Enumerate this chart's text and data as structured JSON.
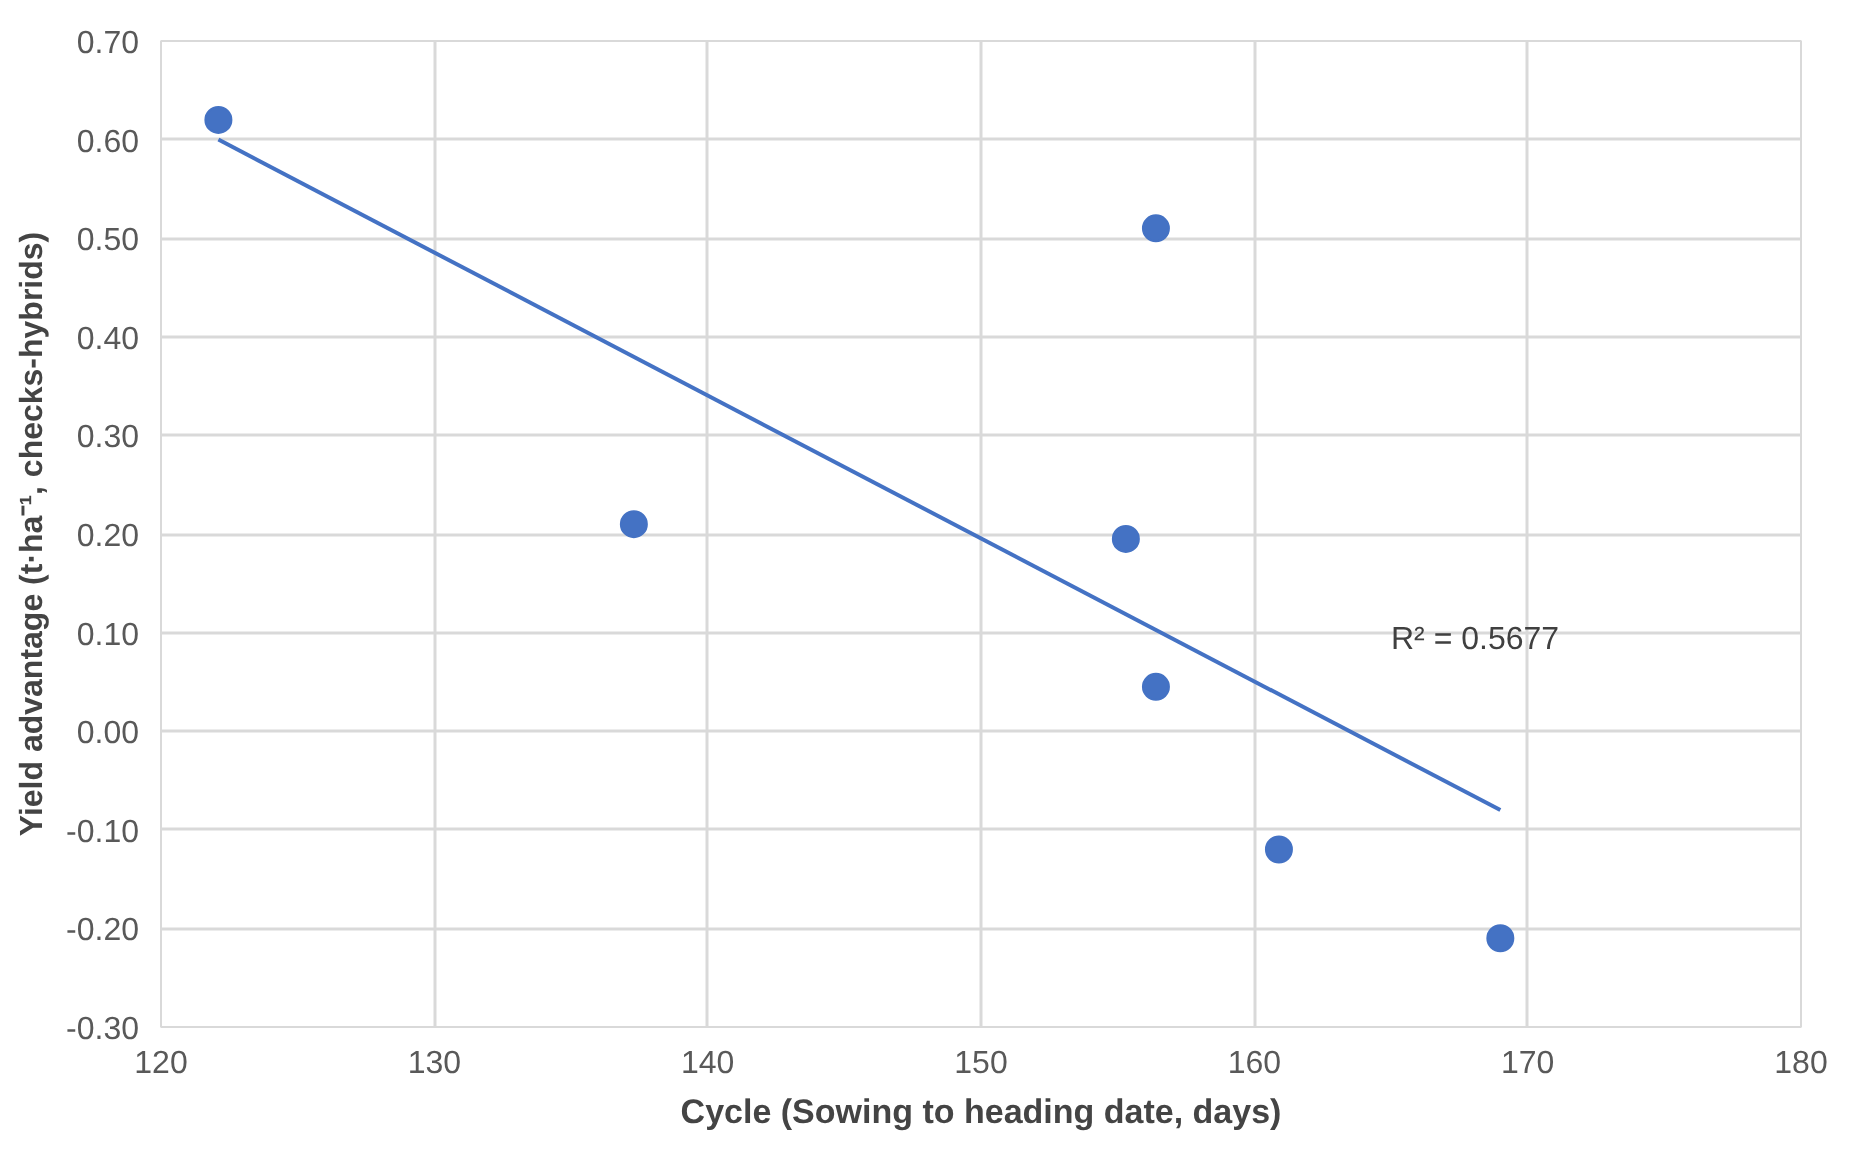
{
  "chart_data": {
    "type": "scatter",
    "xlabel": "Cycle (Sowing to heading date, days)",
    "ylabel": "Yield advantage (t·ha⁻¹, checks-hybrids)",
    "x": [
      122.1,
      137.3,
      156.4,
      155.3,
      156.4,
      160.9,
      169.0
    ],
    "series": [
      {
        "color": "#4472c4",
        "marker": "circle",
        "values": [
          0.62,
          0.21,
          0.51,
          0.195,
          0.045,
          -0.12,
          -0.21
        ]
      },
      {
        "type": "line",
        "color": "#4472c4",
        "marker": "none",
        "x": [
          122.1,
          169.0
        ],
        "values": [
          0.6,
          -0.08
        ]
      }
    ],
    "xlim": [
      120,
      180
    ],
    "ylim": [
      -0.3,
      0.7
    ],
    "xticks": [
      120,
      130,
      140,
      150,
      160,
      170,
      180
    ],
    "yticks": [
      {
        "value": -0.3,
        "label": "-0.30"
      },
      {
        "value": -0.2,
        "label": "-0.20"
      },
      {
        "value": -0.1,
        "label": "-0.10"
      },
      {
        "value": 0,
        "label": "0.00"
      },
      {
        "value": 0.1,
        "label": "0.10"
      },
      {
        "value": 0.2,
        "label": "0.20"
      },
      {
        "value": 0.3,
        "label": "0.30"
      },
      {
        "value": 0.4,
        "label": "0.40"
      },
      {
        "value": 0.5,
        "label": "0.50"
      },
      {
        "value": 0.6,
        "label": "0.60"
      },
      {
        "value": 0.7,
        "label": "0.70"
      }
    ],
    "annotations": [
      "R² = 0.5677"
    ],
    "grid": true
  }
}
